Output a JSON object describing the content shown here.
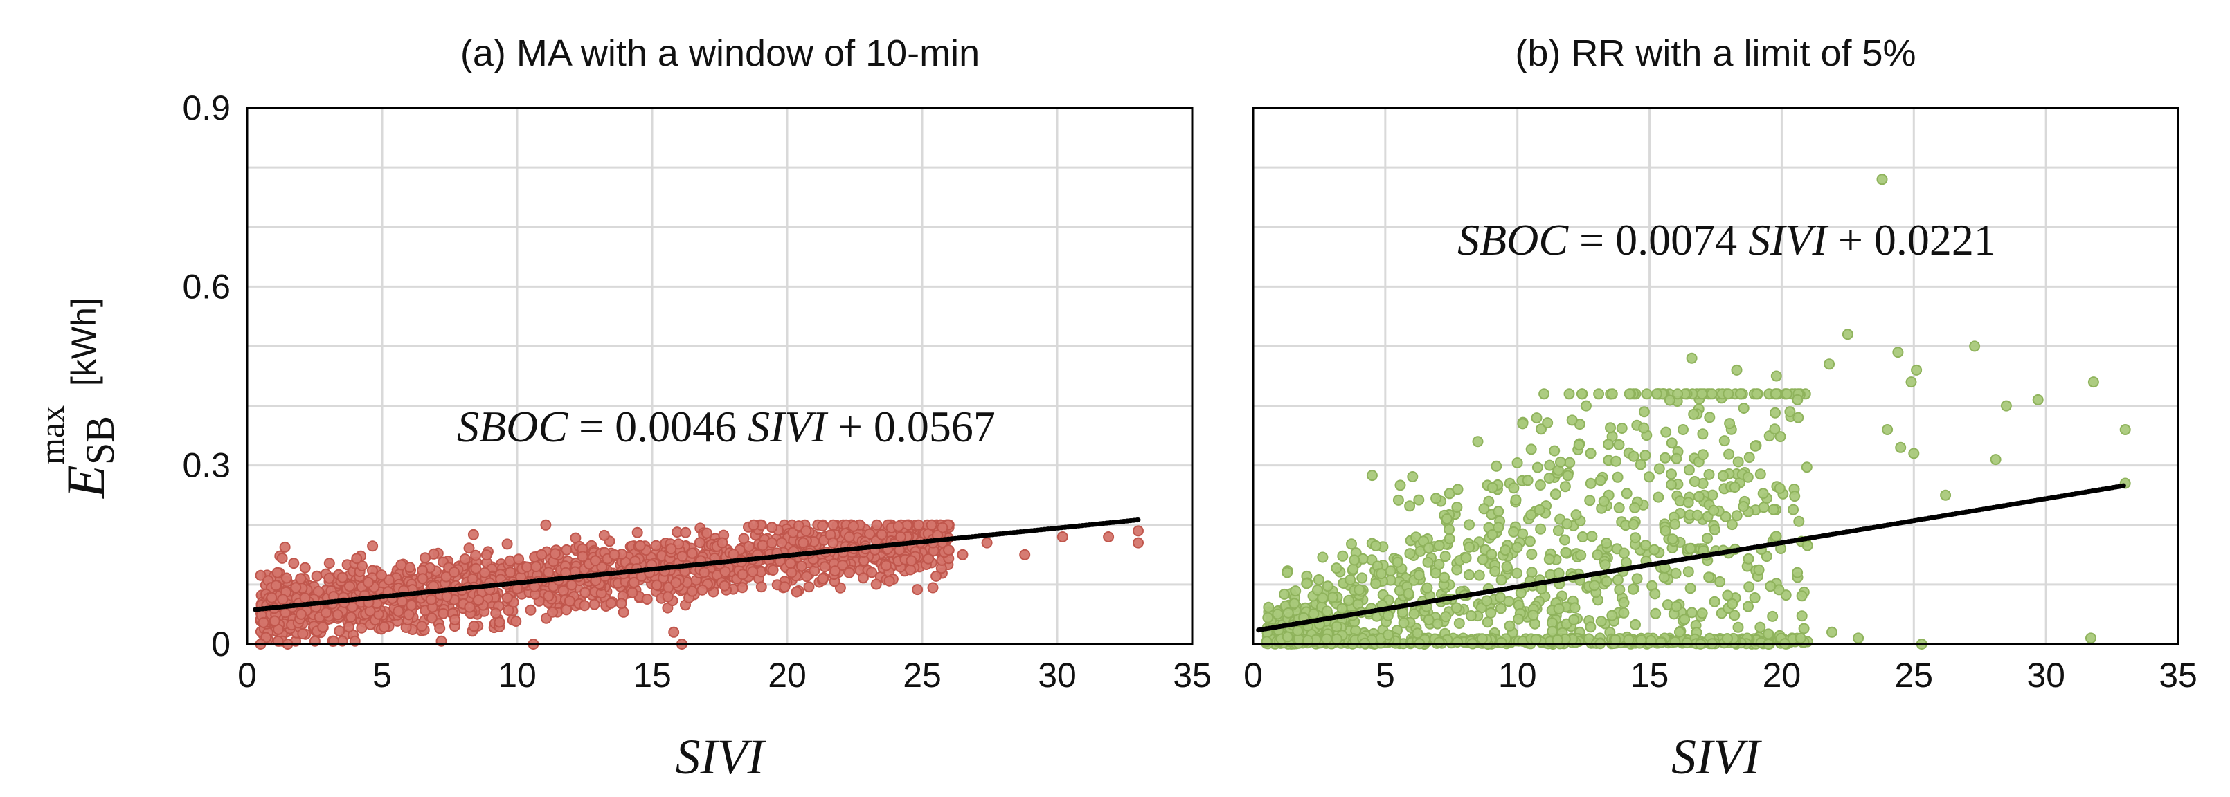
{
  "y_axis": {
    "label_main": "E",
    "label_sub": "SB",
    "label_sup": "max",
    "unit": "[kWh]"
  },
  "chart_data": [
    {
      "id": "a",
      "type": "scatter",
      "title": "(a) MA with a window of 10-min",
      "xlabel": "SIVI",
      "xlim": [
        0,
        35
      ],
      "ylim": [
        0,
        0.9
      ],
      "xticks": [
        0,
        5,
        10,
        15,
        20,
        25,
        30,
        35
      ],
      "yticks": [
        0,
        0.3,
        0.6,
        0.9
      ],
      "ytick_labels": [
        "0",
        "0.3",
        "0.6",
        "0.9"
      ],
      "show_ytick_labels": true,
      "grid": true,
      "marker_color": "#d4756b",
      "marker_edge": "#c0564c",
      "fit": {
        "slope": 0.0046,
        "intercept": 0.0567,
        "x_range": [
          0.3,
          33
        ]
      },
      "equation": {
        "lhs": "SBOC",
        "eq": "= 0.0046",
        "var": "SIVI",
        "rhs": "+ 0.0567"
      },
      "sample_points": [
        [
          1.0,
          0.06
        ],
        [
          2.0,
          0.05
        ],
        [
          3.2,
          0.08
        ],
        [
          4.5,
          0.07
        ],
        [
          5.8,
          0.09
        ],
        [
          6.5,
          0.11
        ],
        [
          7.4,
          0.08
        ],
        [
          8.8,
          0.12
        ],
        [
          9.6,
          0.1
        ],
        [
          10.7,
          0.13
        ],
        [
          11.8,
          0.12
        ],
        [
          12.9,
          0.14
        ],
        [
          13.6,
          0.15
        ],
        [
          14.9,
          0.12
        ],
        [
          15.7,
          0.16
        ],
        [
          16.8,
          0.14
        ],
        [
          17.6,
          0.17
        ],
        [
          18.9,
          0.15
        ],
        [
          19.8,
          0.17
        ],
        [
          20.6,
          0.15
        ],
        [
          21.7,
          0.17
        ],
        [
          22.9,
          0.16
        ],
        [
          24.2,
          0.18
        ],
        [
          25.4,
          0.17
        ],
        [
          26.5,
          0.15
        ],
        [
          27.4,
          0.17
        ],
        [
          28.8,
          0.15
        ],
        [
          30.2,
          0.18
        ],
        [
          31.9,
          0.18
        ],
        [
          33.0,
          0.19
        ],
        [
          33.0,
          0.17
        ],
        [
          0.5,
          0.0
        ],
        [
          1.5,
          0.0
        ],
        [
          15.8,
          0.02
        ],
        [
          16.1,
          0.0
        ],
        [
          10.6,
          0.0
        ],
        [
          8.4,
          0.03
        ],
        [
          24.6,
          0.14
        ],
        [
          22.3,
          0.12
        ],
        [
          20.7,
          0.19
        ]
      ],
      "bulk": {
        "seed": 11,
        "count": 1800,
        "x_range": [
          0.5,
          26
        ],
        "noise": 0.028,
        "y_min": 0.005,
        "y_max": 0.2
      }
    },
    {
      "id": "b",
      "type": "scatter",
      "title": "(b) RR with a limit of 5%",
      "xlabel": "SIVI",
      "xlim": [
        0,
        35
      ],
      "ylim": [
        0,
        0.9
      ],
      "xticks": [
        0,
        5,
        10,
        15,
        20,
        25,
        30,
        35
      ],
      "yticks": [
        0,
        0.3,
        0.6,
        0.9
      ],
      "ytick_labels": [
        "0",
        "0.3",
        "0.6",
        "0.9"
      ],
      "show_ytick_labels": false,
      "grid": true,
      "marker_color": "#a9c97a",
      "marker_edge": "#8fb35c",
      "fit": {
        "slope": 0.0074,
        "intercept": 0.0221,
        "x_range": [
          0.2,
          33
        ]
      },
      "equation": {
        "lhs": "SBOC",
        "eq": "= 0.0074",
        "var": "SIVI",
        "rhs": "+ 0.0221"
      },
      "sample_points": [
        [
          23.8,
          0.78
        ],
        [
          22.5,
          0.52
        ],
        [
          24.4,
          0.49
        ],
        [
          27.3,
          0.5
        ],
        [
          16.6,
          0.48
        ],
        [
          18.3,
          0.46
        ],
        [
          19.8,
          0.45
        ],
        [
          24.9,
          0.44
        ],
        [
          25.1,
          0.46
        ],
        [
          31.8,
          0.44
        ],
        [
          21.8,
          0.47
        ],
        [
          29.7,
          0.41
        ],
        [
          28.5,
          0.4
        ],
        [
          12.6,
          0.4
        ],
        [
          14.8,
          0.39
        ],
        [
          10.2,
          0.37
        ],
        [
          8.5,
          0.34
        ],
        [
          33.0,
          0.36
        ],
        [
          24.0,
          0.36
        ],
        [
          25.0,
          0.32
        ],
        [
          28.1,
          0.31
        ],
        [
          33.0,
          0.27
        ],
        [
          26.2,
          0.25
        ],
        [
          20.6,
          0.41
        ],
        [
          31.7,
          0.01
        ],
        [
          25.3,
          0.0
        ],
        [
          22.9,
          0.01
        ],
        [
          21.9,
          0.02
        ],
        [
          19.5,
          0.0
        ],
        [
          24.5,
          0.33
        ]
      ],
      "bulk": {
        "seed": 29,
        "count": 1300,
        "x_range": [
          0.5,
          21
        ],
        "noise": 0.075,
        "y_min": 0.0,
        "y_max": 0.42
      }
    }
  ]
}
